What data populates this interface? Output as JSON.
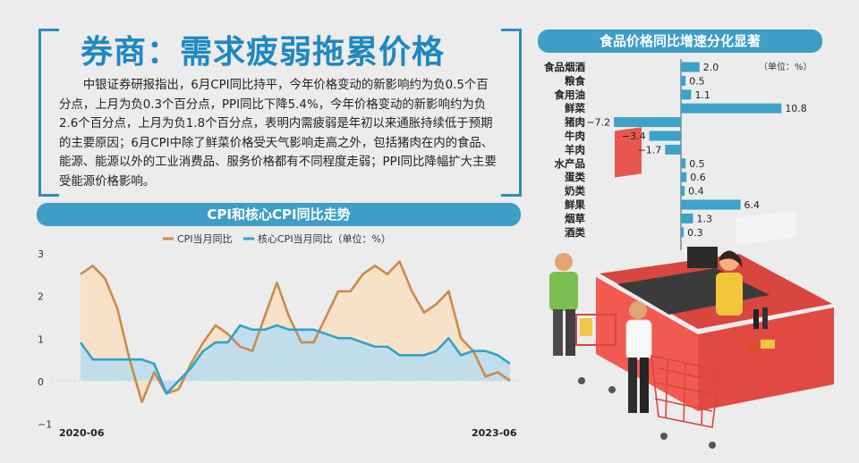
{
  "headline": "券商：需求疲弱拖累价格",
  "body": "中银证券研报指出，6月CPI同比持平，今年价格变动的新影响约为负0.5个百分点，上月为负0.3个百分点，PPI同比下降5.4%，今年价格变动的新影响约为负2.6个百分点，上月为负1.8个百分点，表明内需疲弱是年初以来通胀持续低于预期的主要原因；6月CPI中除了鲜菜价格受天气影响走高之外，包括猪肉在内的食品、能源、能源以外的工业消费品、服务价格都有不同程度走弱；PPI同比降幅扩大主要受能源价格影响。",
  "colors": {
    "accent": "#1f88c2",
    "banner": "#3e9ec6",
    "cpi": "#c98b4c",
    "core": "#2fa3c8",
    "cpi_fill": "#f8e2c5",
    "core_fill": "#b9dcf0",
    "bar": "#3da2c8"
  },
  "chart_data": [
    {
      "type": "line",
      "title": "CPI和核心CPI同比走势",
      "legend": [
        "CPI当月同比",
        "核心CPI当月同比（单位：%）"
      ],
      "legend_position": "top-right",
      "x_labels": [
        "2020-06",
        "2023-06"
      ],
      "y_ticks": [
        "3",
        "2",
        "1",
        "0",
        "−1"
      ],
      "ylim": [
        -1,
        3
      ],
      "series": [
        {
          "name": "CPI当月同比",
          "values": [
            2.5,
            2.7,
            2.4,
            1.7,
            0.5,
            -0.5,
            0.2,
            -0.3,
            -0.2,
            0.4,
            0.9,
            1.3,
            1.1,
            0.8,
            0.7,
            1.5,
            2.3,
            1.5,
            0.9,
            0.9,
            1.5,
            2.1,
            2.1,
            2.5,
            2.7,
            2.5,
            2.8,
            2.1,
            1.6,
            1.8,
            2.1,
            1.0,
            0.7,
            0.1,
            0.2,
            0.0
          ]
        },
        {
          "name": "核心CPI当月同比",
          "values": [
            0.9,
            0.5,
            0.5,
            0.5,
            0.5,
            0.5,
            0.4,
            -0.3,
            0.0,
            0.3,
            0.7,
            0.9,
            0.9,
            1.3,
            1.2,
            1.2,
            1.3,
            1.2,
            1.2,
            1.2,
            1.1,
            1.0,
            1.0,
            0.9,
            0.8,
            0.8,
            0.6,
            0.6,
            0.6,
            0.7,
            1.0,
            0.6,
            0.7,
            0.7,
            0.6,
            0.4
          ]
        }
      ]
    },
    {
      "type": "bar",
      "title": "食品价格同比增速分化显著",
      "unit_note": "（单位：%）",
      "categories": [
        "食品烟酒",
        "粮食",
        "食用油",
        "鲜菜",
        "猪肉",
        "牛肉",
        "羊肉",
        "水产品",
        "蛋类",
        "奶类",
        "鲜果",
        "烟草",
        "酒类"
      ],
      "values": [
        2.0,
        0.5,
        1.1,
        10.8,
        -7.2,
        -3.4,
        -1.7,
        0.5,
        0.6,
        0.4,
        6.4,
        1.3,
        0.3
      ],
      "value_labels": [
        "2.0",
        "0.5",
        "1.1",
        "10.8",
        "−7.2",
        "−3.4",
        "−1.7",
        "0.5",
        "0.6",
        "0.4",
        "6.4",
        "1.3",
        "0.3"
      ]
    }
  ]
}
